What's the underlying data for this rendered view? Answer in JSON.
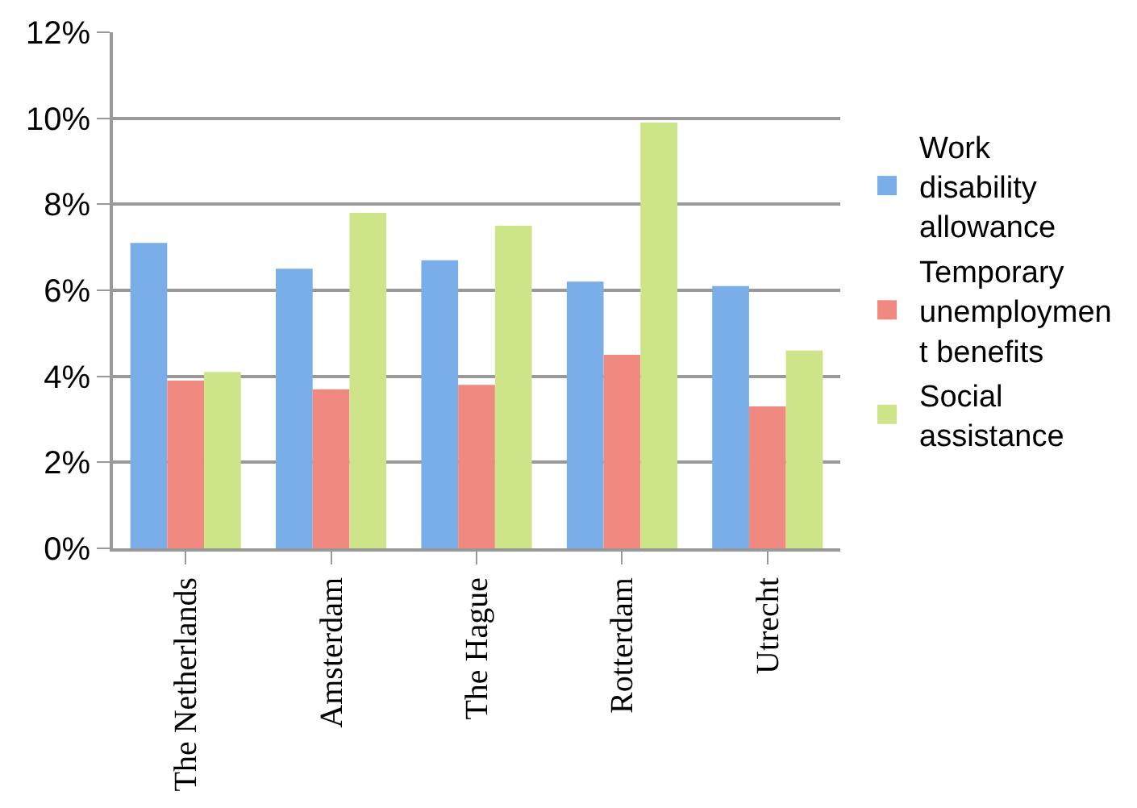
{
  "chart_data": {
    "type": "bar",
    "categories": [
      "The Netherlands",
      "Amsterdam",
      "The Hague",
      "Rotterdam",
      "Utrecht"
    ],
    "series": [
      {
        "name": "Work disability allowance",
        "color": "#7aaee8",
        "values": [
          7.1,
          6.5,
          6.7,
          6.2,
          6.1
        ]
      },
      {
        "name": "Temporary unemployment benefits",
        "color": "#f08a80",
        "values": [
          3.9,
          3.7,
          3.8,
          4.5,
          3.3
        ]
      },
      {
        "name": "Social assistance",
        "color": "#cde488",
        "values": [
          4.1,
          7.8,
          7.5,
          9.9,
          4.6
        ]
      }
    ],
    "ylim": [
      0,
      12
    ],
    "yticks": [
      {
        "value": 0,
        "label": "0%"
      },
      {
        "value": 2,
        "label": "2%"
      },
      {
        "value": 4,
        "label": "4%"
      },
      {
        "value": 6,
        "label": "6%"
      },
      {
        "value": 8,
        "label": "8%"
      },
      {
        "value": 10,
        "label": "10%"
      },
      {
        "value": 12,
        "label": "12%"
      }
    ],
    "grid": "y",
    "legend": "right"
  }
}
